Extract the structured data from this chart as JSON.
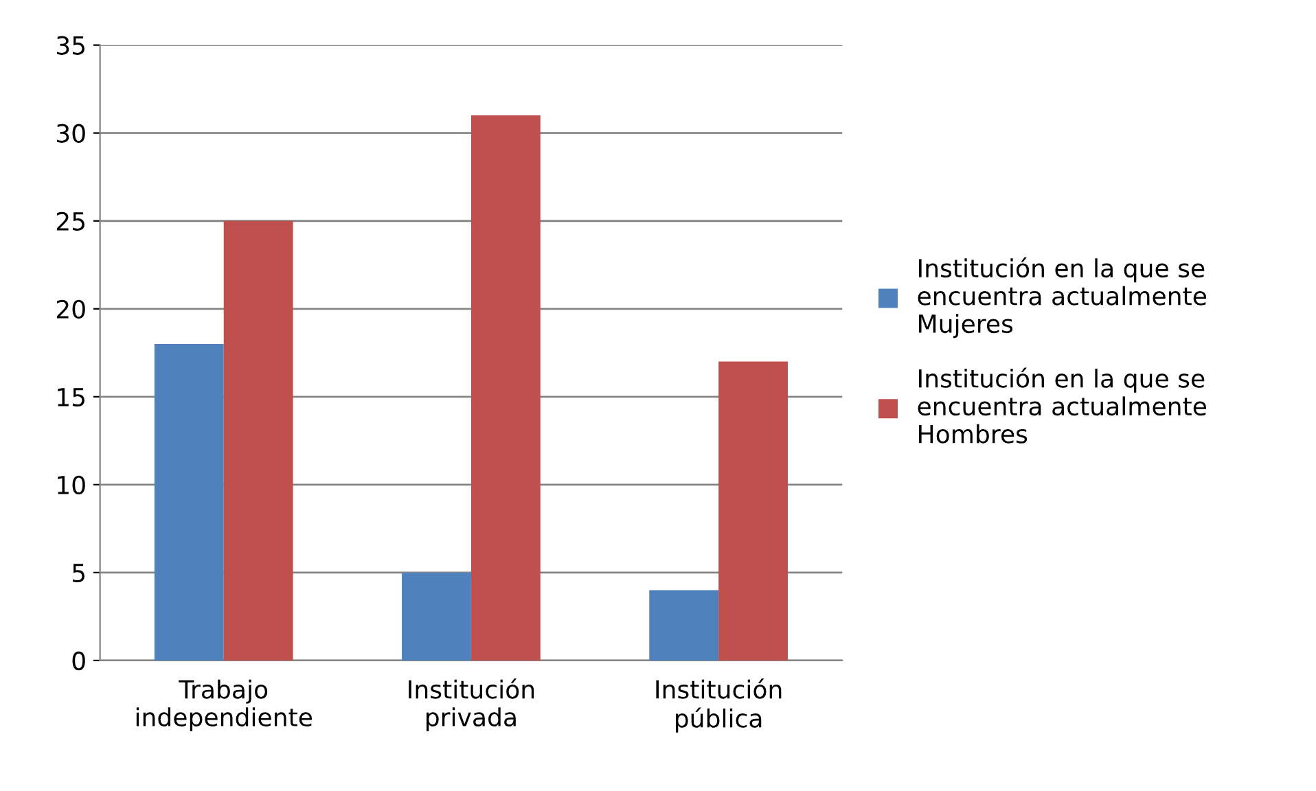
{
  "chart_data": {
    "type": "bar",
    "categories": [
      "Trabajo\nindependiente",
      "Institución\nprivada",
      "Institución\npública"
    ],
    "series": [
      {
        "name": "Institución en la que se\nencuentra actualmente\nMujeres",
        "color": "#4f81bd",
        "values": [
          18,
          5,
          4
        ]
      },
      {
        "name": "Institución en la que se\nencuentra actualmente\nHombres",
        "color": "#c0504d",
        "values": [
          25,
          31,
          17
        ]
      }
    ],
    "ylim": [
      0,
      35
    ],
    "yticks": [
      0,
      5,
      10,
      15,
      20,
      25,
      30,
      35
    ],
    "grid": "y",
    "legend": "right"
  }
}
